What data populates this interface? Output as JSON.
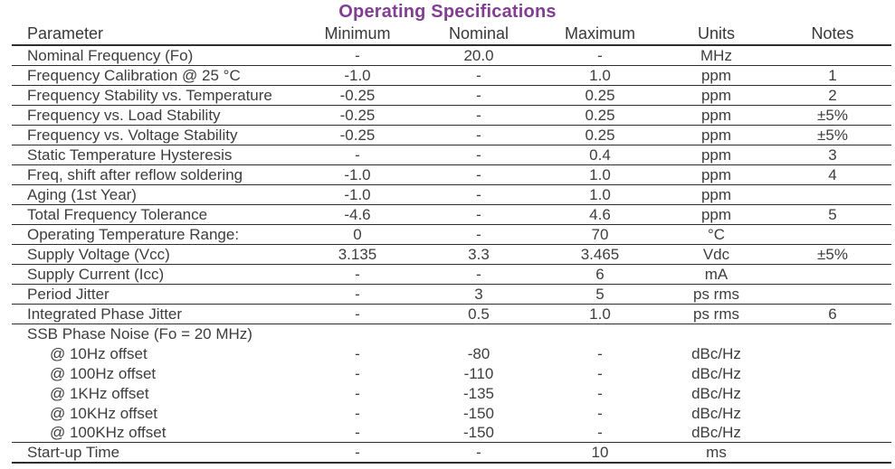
{
  "title": "Operating Specifications",
  "theme": {
    "title_color": "#823e92",
    "text_color": "#3d3d3d",
    "line_color": "#2e2e2e"
  },
  "table": {
    "columns": [
      "Parameter",
      "Minimum",
      "Nominal",
      "Maximum",
      "Units",
      "Notes"
    ],
    "rows": [
      {
        "parameter": "Nominal Frequency (Fo)",
        "minimum": "-",
        "nominal": "20.0",
        "maximum": "-",
        "units": "MHz",
        "notes": "",
        "indent": false,
        "divider": true
      },
      {
        "parameter": "Frequency Calibration @ 25 °C",
        "minimum": "-1.0",
        "nominal": "-",
        "maximum": "1.0",
        "units": "ppm",
        "notes": "1",
        "indent": false,
        "divider": true
      },
      {
        "parameter": "Frequency Stability vs. Temperature",
        "minimum": "-0.25",
        "nominal": "-",
        "maximum": "0.25",
        "units": "ppm",
        "notes": "2",
        "indent": false,
        "divider": true
      },
      {
        "parameter": "Frequency vs. Load Stability",
        "minimum": "-0.25",
        "nominal": "-",
        "maximum": "0.25",
        "units": "ppm",
        "notes": "±5%",
        "indent": false,
        "divider": true
      },
      {
        "parameter": "Frequency vs. Voltage Stability",
        "minimum": "-0.25",
        "nominal": "-",
        "maximum": "0.25",
        "units": "ppm",
        "notes": "±5%",
        "indent": false,
        "divider": true
      },
      {
        "parameter": "Static Temperature Hysteresis",
        "minimum": "-",
        "nominal": "-",
        "maximum": "0.4",
        "units": "ppm",
        "notes": "3",
        "indent": false,
        "divider": true
      },
      {
        "parameter": "Freq, shift after reflow soldering",
        "minimum": "-1.0",
        "nominal": "-",
        "maximum": "1.0",
        "units": "ppm",
        "notes": "4",
        "indent": false,
        "divider": true
      },
      {
        "parameter": "Aging (1st Year)",
        "minimum": "-1.0",
        "nominal": "-",
        "maximum": "1.0",
        "units": "ppm",
        "notes": "",
        "indent": false,
        "divider": true
      },
      {
        "parameter": "Total Frequency Tolerance",
        "minimum": "-4.6",
        "nominal": "-",
        "maximum": "4.6",
        "units": "ppm",
        "notes": "5",
        "indent": false,
        "divider": true
      },
      {
        "parameter": "Operating Temperature Range:",
        "minimum": "0",
        "nominal": "-",
        "maximum": "70",
        "units": "°C",
        "notes": "",
        "indent": false,
        "divider": true
      },
      {
        "parameter": "Supply Voltage (Vcc)",
        "minimum": "3.135",
        "nominal": "3.3",
        "maximum": "3.465",
        "units": "Vdc",
        "notes": "±5%",
        "indent": false,
        "divider": true
      },
      {
        "parameter": "Supply Current (Icc)",
        "minimum": "-",
        "nominal": "-",
        "maximum": "6",
        "units": "mA",
        "notes": "",
        "indent": false,
        "divider": true
      },
      {
        "parameter": "Period Jitter",
        "minimum": "-",
        "nominal": "3",
        "maximum": "5",
        "units": "ps rms",
        "notes": "",
        "indent": false,
        "divider": true
      },
      {
        "parameter": "Integrated Phase Jitter",
        "minimum": "-",
        "nominal": "0.5",
        "maximum": "1.0",
        "units": "ps rms",
        "notes": "6",
        "indent": false,
        "divider": true
      },
      {
        "parameter": "SSB Phase Noise (Fo = 20 MHz)",
        "minimum": "",
        "nominal": "",
        "maximum": "",
        "units": "",
        "notes": "",
        "indent": false,
        "divider": false
      },
      {
        "parameter": "@ 10Hz offset",
        "minimum": "-",
        "nominal": "-80",
        "maximum": "-",
        "units": "dBc/Hz",
        "notes": "",
        "indent": true,
        "divider": false
      },
      {
        "parameter": "@ 100Hz offset",
        "minimum": "-",
        "nominal": "-110",
        "maximum": "-",
        "units": "dBc/Hz",
        "notes": "",
        "indent": true,
        "divider": false
      },
      {
        "parameter": "@ 1KHz offset",
        "minimum": "-",
        "nominal": "-135",
        "maximum": "-",
        "units": "dBc/Hz",
        "notes": "",
        "indent": true,
        "divider": false
      },
      {
        "parameter": "@ 10KHz offset",
        "minimum": "-",
        "nominal": "-150",
        "maximum": "-",
        "units": "dBc/Hz",
        "notes": "",
        "indent": true,
        "divider": false
      },
      {
        "parameter": "@ 100KHz offset",
        "minimum": "-",
        "nominal": "-150",
        "maximum": "-",
        "units": "dBc/Hz",
        "notes": "",
        "indent": true,
        "divider": true
      },
      {
        "parameter": "Start-up Time",
        "minimum": "-",
        "nominal": "-",
        "maximum": "10",
        "units": "ms",
        "notes": "",
        "indent": false,
        "divider": true
      }
    ]
  }
}
